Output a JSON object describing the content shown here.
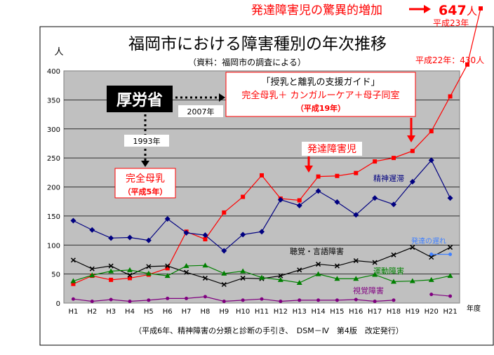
{
  "chart_data": {
    "type": "line",
    "title": "福岡市における障害種別の年次推移",
    "subtitle": "（資料：福岡市の調査による）",
    "ylabel": "人",
    "xlabel": "年度",
    "ylim": [
      0,
      400
    ],
    "y_ticks": [
      "0",
      "50",
      "100",
      "150",
      "200",
      "250",
      "300",
      "350",
      "400"
    ],
    "categories": [
      "H1",
      "H2",
      "H3",
      "H4",
      "H5",
      "H6",
      "H7",
      "H8",
      "H9",
      "H10",
      "H11",
      "H12",
      "H13",
      "H14",
      "H15",
      "H16",
      "H17",
      "H18",
      "H19",
      "H20",
      "H21"
    ],
    "grid": true,
    "series": [
      {
        "name": "発達障害児",
        "color": "#ff0000",
        "marker": "square",
        "values": [
          33,
          47,
          40,
          43,
          49,
          60,
          123,
          110,
          156,
          183,
          220,
          180,
          177,
          218,
          219,
          224,
          244,
          250,
          262,
          296,
          356
        ]
      },
      {
        "name": "精神遅滞",
        "color": "#000080",
        "marker": "diamond",
        "values": [
          142,
          126,
          112,
          113,
          108,
          145,
          121,
          117,
          90,
          118,
          123,
          178,
          168,
          193,
          174,
          152,
          181,
          170,
          209,
          246,
          181
        ]
      },
      {
        "name": "聴覚・言語障害",
        "color": "#000000",
        "marker": "x",
        "values": [
          74,
          59,
          64,
          48,
          63,
          64,
          53,
          43,
          32,
          43,
          42,
          47,
          57,
          67,
          64,
          73,
          70,
          83,
          96,
          79,
          96
        ]
      },
      {
        "name": "運動障害",
        "color": "#008000",
        "marker": "triangle",
        "values": [
          38,
          48,
          55,
          57,
          51,
          47,
          64,
          65,
          51,
          55,
          44,
          40,
          35,
          50,
          42,
          42,
          49,
          37,
          38,
          40,
          47
        ]
      },
      {
        "name": "視覚障害",
        "color": "#800080",
        "marker": "circle",
        "values": [
          7,
          3,
          6,
          3,
          5,
          8,
          8,
          11,
          3,
          5,
          7,
          3,
          5,
          5,
          5,
          6,
          3,
          5,
          null,
          15,
          12
        ]
      },
      {
        "name": "発達の遅れ",
        "color": "#4080ff",
        "marker": "circle",
        "values": [
          null,
          null,
          null,
          null,
          null,
          null,
          null,
          null,
          null,
          null,
          null,
          null,
          null,
          null,
          null,
          null,
          null,
          null,
          null,
          84,
          84
        ]
      }
    ],
    "series_labels": {
      "seishin": "精神遅滞",
      "chokaku": "聴覚・言語障害",
      "undo": "運動障害",
      "shikaku": "視覚障害",
      "hattatsu_okure": "発達の遅れ"
    }
  },
  "header": {
    "top_text": "発達障害児の驚異的増加",
    "top_value": "647",
    "top_unit": "人",
    "h23": "平成23年",
    "h22": "平成22年：430人"
  },
  "annotations": {
    "mhlw": "厚労省",
    "year1993": "1993年",
    "year2007": "2007年",
    "box1_line1": "完全母乳",
    "box1_line2": "（平成5年）",
    "box2_line1": "「授乳と離乳の支援ガイド」",
    "box2_line2": "完全母乳＋ カンガルーケア＋母子同室",
    "box2_line3": "（平成19年）",
    "hattatsu_label": "発達障害児"
  },
  "footnote": "（平成6年、精神障害の分類と診断の手引き、　DSM－Ⅳ　第4版　改定発行）",
  "colors": {
    "plot_bg": "#c0c0c0",
    "red": "#ff0000",
    "navy": "#000080",
    "green": "#008000",
    "purple": "#800080",
    "blue": "#4080ff"
  }
}
